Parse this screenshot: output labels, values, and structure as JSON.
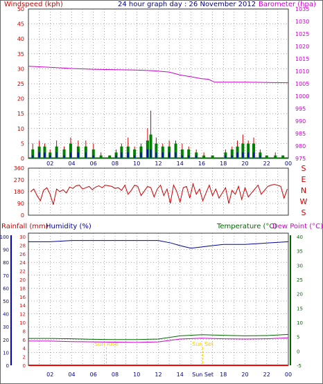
{
  "header": {
    "left": "Windspeed (kph)",
    "center": "24 hour graph day : 26 November 2012",
    "right": "Barometer (hpa)"
  },
  "colors": {
    "wind_axis": "#cc0000",
    "baro": "#cc00cc",
    "title": "#000080",
    "grid": "#ff0000",
    "wind_avg": "#0000cc",
    "wind_gust": "#008000",
    "wind_max": "#cc0000",
    "humidity": "#000099",
    "temperature": "#006600",
    "dewpoint": "#cc00cc",
    "rain": "#ff0000",
    "sun": "#ffcc00"
  },
  "x_ticks": [
    "02",
    "04",
    "06",
    "08",
    "10",
    "12",
    "14",
    "16",
    "18",
    "20",
    "22",
    "00"
  ],
  "chart_data": [
    {
      "type": "line",
      "name": "windspeed-barometer",
      "title": "24 hour graph day : 26 November 2012",
      "ylabel_left": "Windspeed (kph)",
      "ylabel_right": "Barometer (hpa)",
      "y_left_ticks": [
        "50",
        "45",
        "40",
        "35",
        "30",
        "25",
        "20",
        "15",
        "10",
        "5",
        "0"
      ],
      "y_left_lim": [
        0,
        50
      ],
      "y_right_ticks": [
        "1035",
        "1030",
        "1025",
        "1020",
        "1015",
        "1010",
        "1005",
        "1000",
        "995",
        "990",
        "985",
        "980",
        "975"
      ],
      "y_right_lim": [
        975,
        1035
      ],
      "barometer": {
        "x": [
          0,
          2,
          4,
          6,
          8,
          10,
          11.5,
          13,
          14,
          15,
          16,
          16.6,
          17.2,
          18,
          20,
          22,
          24
        ],
        "y": [
          1012,
          1011.6,
          1011.1,
          1010.8,
          1010.6,
          1010.5,
          1010.2,
          1009.7,
          1008.5,
          1007.8,
          1007,
          1006.8,
          1005.6,
          1005.6,
          1005.6,
          1005.5,
          1005.4
        ]
      },
      "wind_bursts": [
        {
          "x": 0.4,
          "max": 5,
          "gust": 3,
          "avg": 1
        },
        {
          "x": 1.0,
          "max": 6,
          "gust": 4,
          "avg": 2
        },
        {
          "x": 1.5,
          "max": 5,
          "gust": 4,
          "avg": 2
        },
        {
          "x": 2.0,
          "max": 3,
          "gust": 2,
          "avg": 1
        },
        {
          "x": 2.6,
          "max": 6,
          "gust": 4,
          "avg": 2
        },
        {
          "x": 3.3,
          "max": 4,
          "gust": 3,
          "avg": 1
        },
        {
          "x": 3.9,
          "max": 7,
          "gust": 5,
          "avg": 2
        },
        {
          "x": 4.6,
          "max": 6,
          "gust": 4,
          "avg": 2
        },
        {
          "x": 5.3,
          "max": 6,
          "gust": 4,
          "avg": 2
        },
        {
          "x": 6.0,
          "max": 5,
          "gust": 3,
          "avg": 1
        },
        {
          "x": 6.7,
          "max": 2,
          "gust": 1,
          "avg": 0
        },
        {
          "x": 7.5,
          "max": 1,
          "gust": 1,
          "avg": 0
        },
        {
          "x": 8.1,
          "max": 3,
          "gust": 2,
          "avg": 1
        },
        {
          "x": 8.6,
          "max": 5,
          "gust": 4,
          "avg": 2
        },
        {
          "x": 9.2,
          "max": 7,
          "gust": 4,
          "avg": 2
        },
        {
          "x": 9.8,
          "max": 4,
          "gust": 3,
          "avg": 1
        },
        {
          "x": 10.4,
          "max": 5,
          "gust": 4,
          "avg": 2
        },
        {
          "x": 11.0,
          "max": 10,
          "gust": 6,
          "avg": 3
        },
        {
          "x": 11.3,
          "max": 16,
          "gust": 8,
          "avg": 3
        },
        {
          "x": 11.8,
          "max": 7,
          "gust": 5,
          "avg": 2
        },
        {
          "x": 12.4,
          "max": 5,
          "gust": 4,
          "avg": 2
        },
        {
          "x": 13.0,
          "max": 6,
          "gust": 4,
          "avg": 2
        },
        {
          "x": 13.6,
          "max": 6,
          "gust": 5,
          "avg": 2
        },
        {
          "x": 14.2,
          "max": 5,
          "gust": 3,
          "avg": 1
        },
        {
          "x": 14.8,
          "max": 4,
          "gust": 3,
          "avg": 1
        },
        {
          "x": 15.5,
          "max": 3,
          "gust": 2,
          "avg": 1
        },
        {
          "x": 16.2,
          "max": 2,
          "gust": 1,
          "avg": 0
        },
        {
          "x": 17.0,
          "max": 1,
          "gust": 1,
          "avg": 0
        },
        {
          "x": 18.2,
          "max": 3,
          "gust": 2,
          "avg": 1
        },
        {
          "x": 18.8,
          "max": 4,
          "gust": 3,
          "avg": 1
        },
        {
          "x": 19.3,
          "max": 6,
          "gust": 4,
          "avg": 2
        },
        {
          "x": 19.8,
          "max": 8,
          "gust": 5,
          "avg": 2
        },
        {
          "x": 20.3,
          "max": 6,
          "gust": 5,
          "avg": 2
        },
        {
          "x": 20.8,
          "max": 7,
          "gust": 5,
          "avg": 2
        },
        {
          "x": 21.4,
          "max": 3,
          "gust": 2,
          "avg": 1
        },
        {
          "x": 22.0,
          "max": 1,
          "gust": 1,
          "avg": 0
        },
        {
          "x": 22.8,
          "max": 2,
          "gust": 1,
          "avg": 0
        },
        {
          "x": 23.5,
          "max": 1,
          "gust": 1,
          "avg": 0
        }
      ]
    },
    {
      "type": "line",
      "name": "wind-direction",
      "y_ticks": [
        "360",
        "270",
        "180",
        "90",
        "0"
      ],
      "ylim": [
        0,
        360
      ],
      "compass": [
        "S",
        "E",
        "N",
        "W",
        "S"
      ],
      "x": [
        0.2,
        0.5,
        0.8,
        1.1,
        1.4,
        1.7,
        2.0,
        2.3,
        2.6,
        2.9,
        3.2,
        3.5,
        3.8,
        4.1,
        4.4,
        4.7,
        5.0,
        5.3,
        5.6,
        5.9,
        6.2,
        6.5,
        6.8,
        7.1,
        7.4,
        7.7,
        8.0,
        8.3,
        8.6,
        8.9,
        9.2,
        9.5,
        9.8,
        10.1,
        10.4,
        10.7,
        11.0,
        11.3,
        11.6,
        11.9,
        12.2,
        12.5,
        12.8,
        13.1,
        13.4,
        13.7,
        14.0,
        14.3,
        14.6,
        14.9,
        15.2,
        15.5,
        15.8,
        16.1,
        16.4,
        16.7,
        17.0,
        17.3,
        17.6,
        17.9,
        18.2,
        18.5,
        18.8,
        19.1,
        19.4,
        19.7,
        20.0,
        20.3,
        20.6,
        20.9,
        21.2,
        21.5,
        21.8,
        22.1,
        22.4,
        22.7,
        23.0,
        23.3,
        23.6,
        23.9
      ],
      "y": [
        180,
        200,
        150,
        110,
        190,
        210,
        160,
        80,
        200,
        180,
        195,
        170,
        215,
        205,
        225,
        230,
        200,
        210,
        220,
        195,
        215,
        225,
        210,
        230,
        225,
        220,
        205,
        210,
        190,
        230,
        160,
        190,
        230,
        220,
        150,
        185,
        220,
        210,
        140,
        200,
        230,
        150,
        200,
        90,
        230,
        180,
        100,
        210,
        220,
        130,
        240,
        160,
        200,
        110,
        170,
        230,
        150,
        200,
        130,
        170,
        210,
        90,
        190,
        160,
        220,
        120,
        210,
        140,
        170,
        200,
        230,
        160,
        190,
        220,
        230,
        235,
        230,
        220,
        130,
        200
      ]
    },
    {
      "type": "line",
      "name": "temperature-humidity-rain",
      "ylabel_left_rain": "Rainfall (mm)",
      "ylabel_left_hum": "Humidity (%)",
      "ylabel_right_temp": "Temperature (°C)",
      "ylabel_right_dew": "Dew Point (°C)",
      "rain_ticks": [
        "30",
        "28",
        "26",
        "24",
        "22",
        "20",
        "18",
        "16",
        "14",
        "12",
        "10",
        "8",
        "6",
        "4",
        "2",
        "0"
      ],
      "rain_lim": [
        0,
        30
      ],
      "humidity_ticks": [
        "100",
        "90",
        "80",
        "70",
        "60",
        "50",
        "40",
        "30",
        "20",
        "10",
        "0"
      ],
      "humidity_lim": [
        0,
        100
      ],
      "temp_ticks": [
        "40",
        "35",
        "30",
        "25",
        "20",
        "15",
        "10",
        "5",
        "0",
        "-5"
      ],
      "temp_lim": [
        -5,
        40
      ],
      "humidity": {
        "x": [
          0,
          2,
          4,
          6,
          8,
          10,
          12,
          13.2,
          14,
          15,
          16,
          17,
          18,
          20,
          22,
          24
        ],
        "y": [
          96,
          96,
          97,
          97,
          97,
          97,
          97,
          95,
          93,
          91,
          92,
          93,
          94,
          94,
          95,
          96
        ]
      },
      "temperature": {
        "x": [
          0,
          2,
          4,
          6,
          8,
          10,
          12,
          14,
          16,
          18,
          20,
          22,
          24
        ],
        "y": [
          4.4,
          4.4,
          4.3,
          4.1,
          4.0,
          4.0,
          4.2,
          5.3,
          5.7,
          5.5,
          5.3,
          5.4,
          5.8
        ]
      },
      "dewpoint": {
        "x": [
          0,
          2,
          4,
          6,
          8,
          10,
          12,
          14,
          16,
          18,
          20,
          22,
          24
        ],
        "y": [
          3.5,
          3.5,
          3.3,
          3.2,
          3.1,
          3.0,
          3.2,
          4.2,
          4.5,
          4.3,
          4.2,
          4.3,
          4.6
        ]
      },
      "rainfall": {
        "x": [
          0,
          24
        ],
        "y": [
          0,
          0
        ]
      },
      "sun_rise": {
        "x": 7.2,
        "label": "Sun Rise"
      },
      "sun_set": {
        "x": 16.1,
        "label": "Sun Set"
      },
      "x_tick_special": "Sun Set"
    }
  ]
}
